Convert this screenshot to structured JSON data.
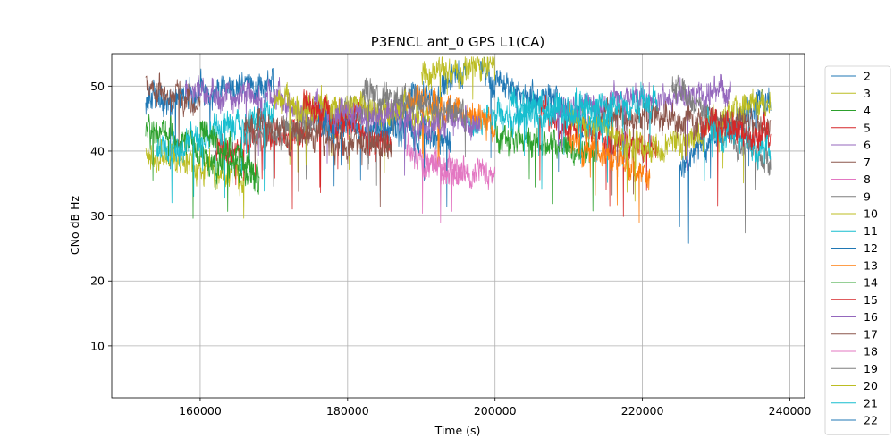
{
  "chart_data": {
    "type": "line",
    "title": "P3ENCL ant_0 GPS L1(CA)",
    "xlabel": "Time (s)",
    "ylabel": "CNo dB Hz",
    "xlim": [
      148000,
      242000
    ],
    "ylim": [
      2,
      55
    ],
    "xticks": [
      160000,
      180000,
      200000,
      220000,
      240000
    ],
    "yticks": [
      10,
      20,
      30,
      40,
      50
    ],
    "grid": true,
    "legend_placement": "outside-right",
    "colors": [
      "#1f77b4",
      "#bcbd22",
      "#2ca02c",
      "#d62728",
      "#9467bd",
      "#8c564b",
      "#e377c2",
      "#7f7f7f",
      "#bcbd22",
      "#17becf",
      "#1f77b4",
      "#ff7f0e",
      "#2ca02c",
      "#d62728",
      "#9467bd",
      "#8c564b",
      "#e377c2",
      "#7f7f7f",
      "#bcbd22",
      "#17becf"
    ],
    "series": [
      {
        "name": "2",
        "segments": [
          {
            "x": [
              152600,
              170000
            ],
            "y": [
              48,
              50
            ]
          },
          {
            "x": [
              184000,
              196000
            ],
            "y": [
              44,
              52
            ]
          },
          {
            "x": [
              198000,
              212000
            ],
            "y": [
              52,
              45
            ]
          },
          {
            "x": [
              225000,
              237400
            ],
            "y": [
              38,
              48
            ]
          }
        ]
      },
      {
        "name": "3",
        "segments": [
          {
            "x": [
              152600,
              166000
            ],
            "y": [
              40,
              36
            ]
          },
          {
            "x": [
              190000,
              200000
            ],
            "y": [
              52,
              53
            ]
          },
          {
            "x": [
              222000,
              237400
            ],
            "y": [
              40,
              48
            ]
          }
        ]
      },
      {
        "name": "4",
        "segments": [
          {
            "x": [
              152600,
              168000
            ],
            "y": [
              44,
              36
            ]
          },
          {
            "x": [
              200000,
              214000
            ],
            "y": [
              42,
              40
            ]
          }
        ]
      },
      {
        "name": "5",
        "segments": [
          {
            "x": [
              162000,
              182000
            ],
            "y": [
              40,
              46
            ]
          },
          {
            "x": [
              206000,
              222000
            ],
            "y": [
              45,
              40
            ]
          }
        ]
      },
      {
        "name": "6",
        "segments": [
          {
            "x": [
              158000,
              178000
            ],
            "y": [
              50,
              46
            ]
          },
          {
            "x": [
              208000,
              232000
            ],
            "y": [
              47,
              49
            ]
          }
        ]
      },
      {
        "name": "7",
        "segments": [
          {
            "x": [
              152600,
              160000
            ],
            "y": [
              50,
              47
            ]
          },
          {
            "x": [
              214000,
              237400
            ],
            "y": [
              46,
              44
            ]
          }
        ]
      },
      {
        "name": "8",
        "segments": [
          {
            "x": [
              188000,
              196000
            ],
            "y": [
              40,
              36
            ]
          }
        ]
      },
      {
        "name": "9",
        "segments": [
          {
            "x": [
              166000,
              190000
            ],
            "y": [
              42,
              48
            ]
          },
          {
            "x": [
              224000,
              237400
            ],
            "y": [
              50,
              38
            ]
          }
        ]
      },
      {
        "name": "10",
        "segments": [
          {
            "x": [
              170000,
              192000
            ],
            "y": [
              48,
              45
            ]
          }
        ]
      },
      {
        "name": "11",
        "segments": [
          {
            "x": [
              154000,
              170000
            ],
            "y": [
              40,
              46
            ]
          },
          {
            "x": [
              196000,
              222000
            ],
            "y": [
              44,
              48
            ]
          },
          {
            "x": [
              228000,
              237400
            ],
            "y": [
              44,
              40
            ]
          }
        ]
      },
      {
        "name": "12",
        "segments": [
          {
            "x": [
              176000,
              194000
            ],
            "y": [
              44,
              42
            ]
          }
        ]
      },
      {
        "name": "13",
        "segments": [
          {
            "x": [
              188000,
              200000
            ],
            "y": [
              48,
              44
            ]
          },
          {
            "x": [
              210000,
              221000
            ],
            "y": [
              42,
              36
            ]
          }
        ]
      },
      {
        "name": "14",
        "segments": [
          {
            "x": [
              160000,
              168000
            ],
            "y": [
              44,
              36
            ]
          }
        ]
      },
      {
        "name": "15",
        "segments": [
          {
            "x": [
              174000,
              186000
            ],
            "y": [
              48,
              40
            ]
          },
          {
            "x": [
              228000,
              237400
            ],
            "y": [
              44,
              42
            ]
          }
        ]
      },
      {
        "name": "16",
        "segments": [
          {
            "x": [
              178000,
              198000
            ],
            "y": [
              46,
              44
            ]
          }
        ]
      },
      {
        "name": "17",
        "segments": [
          {
            "x": [
              166000,
              186000
            ],
            "y": [
              44,
              40
            ]
          }
        ]
      },
      {
        "name": "18",
        "segments": [
          {
            "x": [
              190000,
              200000
            ],
            "y": [
              38,
              36
            ]
          }
        ]
      },
      {
        "name": "19",
        "segments": [
          {
            "x": [
              182000,
              196000
            ],
            "y": [
              49,
              46
            ]
          }
        ]
      },
      {
        "name": "20",
        "segments": [
          {
            "x": [
              210000,
              222000
            ],
            "y": [
              46,
              40
            ]
          }
        ]
      },
      {
        "name": "21",
        "segments": [
          {
            "x": [
              202000,
              216000
            ],
            "y": [
              48,
              44
            ]
          }
        ]
      },
      {
        "name": "22",
        "segments": []
      }
    ]
  }
}
